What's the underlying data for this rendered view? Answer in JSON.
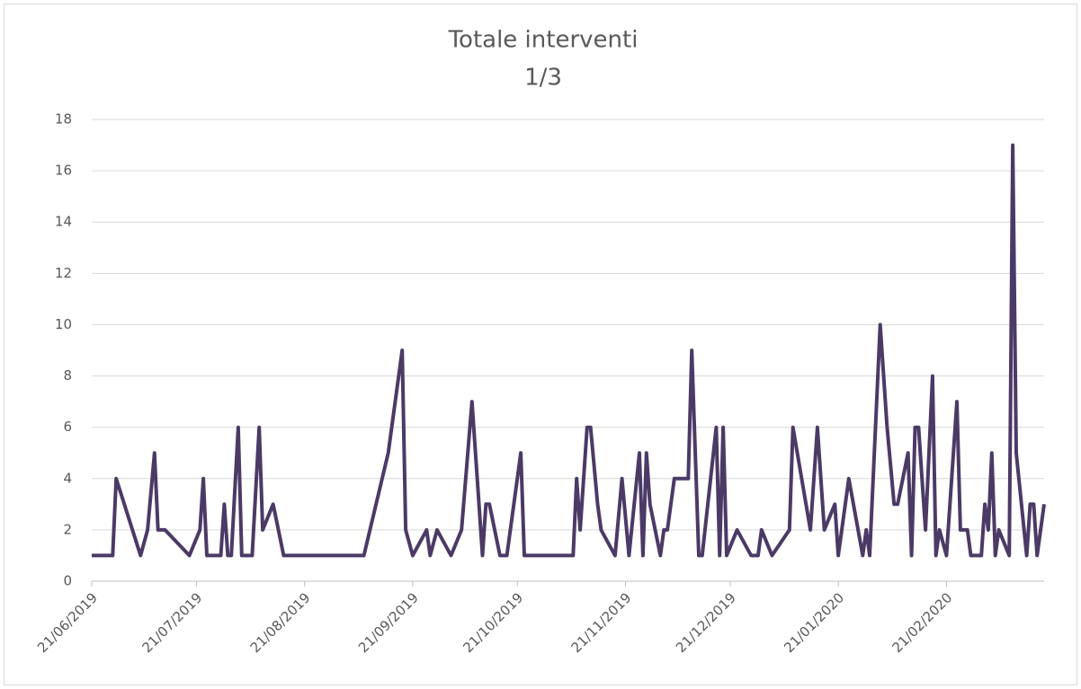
{
  "chart_data": {
    "type": "line",
    "title": "Totale interventi",
    "subtitle": "1/3",
    "x": [
      "21/06/2019",
      "27/06/2019",
      "28/06/2019",
      "05/07/2019",
      "07/07/2019",
      "09/07/2019",
      "10/07/2019",
      "12/07/2019",
      "19/07/2019",
      "22/07/2019",
      "23/07/2019",
      "24/07/2019",
      "28/07/2019",
      "29/07/2019",
      "30/07/2019",
      "31/07/2019",
      "02/08/2019",
      "03/08/2019",
      "06/08/2019",
      "08/08/2019",
      "09/08/2019",
      "12/08/2019",
      "15/08/2019",
      "07/09/2019",
      "14/09/2019",
      "18/09/2019",
      "19/09/2019",
      "21/09/2019",
      "25/09/2019",
      "26/09/2019",
      "28/09/2019",
      "02/10/2019",
      "05/10/2019",
      "08/10/2019",
      "11/10/2019",
      "12/10/2019",
      "13/10/2019",
      "16/10/2019",
      "18/10/2019",
      "22/10/2019",
      "23/10/2019",
      "06/11/2019",
      "07/11/2019",
      "08/11/2019",
      "10/11/2019",
      "11/11/2019",
      "13/11/2019",
      "14/11/2019",
      "18/11/2019",
      "20/11/2019",
      "22/11/2019",
      "25/11/2019",
      "26/11/2019",
      "27/11/2019",
      "28/11/2019",
      "01/12/2019",
      "02/12/2019",
      "03/12/2019",
      "05/12/2019",
      "09/12/2019",
      "10/12/2019",
      "12/12/2019",
      "13/12/2019",
      "17/12/2019",
      "18/12/2019",
      "19/12/2019",
      "20/12/2019",
      "23/12/2019",
      "27/12/2019",
      "29/12/2019",
      "30/12/2019",
      "02/01/2020",
      "07/01/2020",
      "08/01/2020",
      "13/01/2020",
      "15/01/2020",
      "17/01/2020",
      "20/01/2020",
      "21/01/2020",
      "24/01/2020",
      "28/01/2020",
      "29/01/2020",
      "30/01/2020",
      "02/02/2020",
      "04/02/2020",
      "06/02/2020",
      "07/02/2020",
      "10/02/2020",
      "11/02/2020",
      "12/02/2020",
      "13/02/2020",
      "14/02/2020",
      "15/02/2020",
      "17/02/2020",
      "18/02/2020",
      "19/02/2020",
      "21/02/2020",
      "24/02/2020",
      "25/02/2020",
      "27/02/2020",
      "28/02/2020",
      "02/03/2020",
      "03/03/2020",
      "04/03/2020",
      "05/03/2020",
      "06/03/2020",
      "07/03/2020",
      "10/03/2020",
      "11/03/2020",
      "12/03/2020",
      "15/03/2020",
      "16/03/2020",
      "17/03/2020",
      "18/03/2020",
      "20/03/2020"
    ],
    "series": [
      {
        "color": "#4b3a66",
        "values": [
          1,
          1,
          4,
          1,
          2,
          5,
          2,
          2,
          1,
          2,
          4,
          1,
          1,
          3,
          1,
          1,
          6,
          1,
          1,
          6,
          2,
          3,
          1,
          1,
          5,
          9,
          2,
          1,
          2,
          1,
          2,
          1,
          2,
          7,
          1,
          3,
          3,
          1,
          1,
          5,
          1,
          1,
          4,
          2,
          6,
          6,
          3,
          2,
          1,
          4,
          1,
          5,
          1,
          5,
          3,
          1,
          2,
          2,
          4,
          4,
          9,
          1,
          1,
          6,
          1,
          6,
          1,
          2,
          1,
          1,
          2,
          1,
          2,
          6,
          2,
          6,
          2,
          3,
          1,
          4,
          1,
          2,
          1,
          10,
          6,
          3,
          3,
          5,
          1,
          6,
          6,
          4,
          2,
          8,
          1,
          2,
          1,
          7,
          2,
          2,
          1,
          1,
          3,
          2,
          5,
          1,
          2,
          1,
          17,
          5,
          1,
          3,
          3,
          1,
          3
        ]
      }
    ],
    "xlim": [
      "21/06/2019",
      "20/03/2020"
    ],
    "xticks": [
      "21/06/2019",
      "21/07/2019",
      "21/08/2019",
      "21/09/2019",
      "21/10/2019",
      "21/11/2019",
      "21/12/2019",
      "21/01/2020",
      "21/02/2020"
    ],
    "ylim": [
      0,
      18
    ],
    "yticks": [
      0,
      2,
      4,
      6,
      8,
      10,
      12,
      14,
      16,
      18
    ],
    "grid": true
  }
}
